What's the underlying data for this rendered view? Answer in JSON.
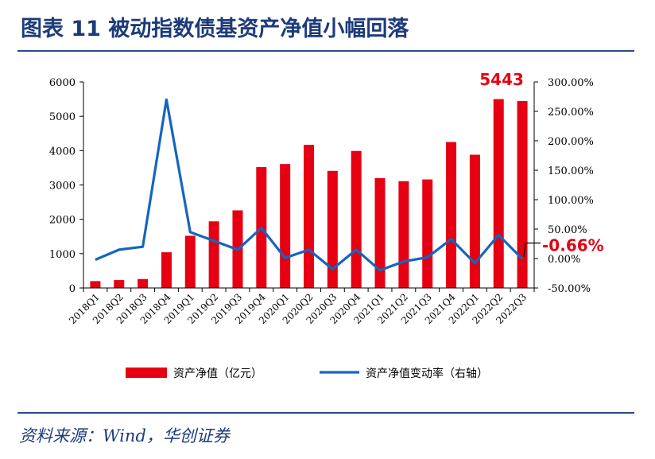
{
  "header": {
    "title": "图表 11  被动指数债基资产净值小幅回落",
    "source": "资料来源：Wind，华创证券"
  },
  "chart_data": {
    "type": "bar+line",
    "categories": [
      "2018Q1",
      "2018Q2",
      "2018Q3",
      "2018Q4",
      "2019Q1",
      "2019Q2",
      "2019Q3",
      "2019Q4",
      "2020Q1",
      "2020Q2",
      "2020Q3",
      "2020Q4",
      "2021Q1",
      "2021Q2",
      "2021Q3",
      "2021Q4",
      "2022Q1",
      "2022Q2",
      "2022Q3"
    ],
    "left_axis": {
      "min": 0,
      "max": 6000,
      "ticks": [
        0,
        1000,
        2000,
        3000,
        4000,
        5000,
        6000
      ],
      "tick_labels": [
        "0",
        "1000",
        "2000",
        "3000",
        "4000",
        "5000",
        "6000"
      ]
    },
    "right_axis": {
      "min": -50,
      "max": 300,
      "ticks": [
        -50,
        0,
        50,
        100,
        150,
        200,
        250,
        300
      ],
      "tick_labels": [
        "-50.00%",
        "0.00%",
        "50.00%",
        "100.00%",
        "150.00%",
        "200.00%",
        "250.00%",
        "300.00%"
      ]
    },
    "series": [
      {
        "name": "资产净值（亿元）",
        "type": "bar",
        "axis": "left",
        "color": "#e60012",
        "values": [
          200,
          230,
          260,
          1040,
          1520,
          1940,
          2260,
          3520,
          3610,
          4170,
          3410,
          3990,
          3200,
          3110,
          3160,
          4250,
          3880,
          5500,
          5443
        ]
      },
      {
        "name": "资产净值变动率（右轴）",
        "type": "line",
        "axis": "right",
        "color": "#1565c0",
        "values": [
          -2,
          15,
          20,
          270,
          45,
          30,
          15,
          52,
          1,
          15,
          -18,
          15,
          -20,
          -5,
          2,
          33,
          -8,
          40,
          -0.66
        ]
      }
    ],
    "annotations": [
      {
        "text": "5443",
        "series": "资产净值（亿元）",
        "category": "2022Q3"
      },
      {
        "text": "-0.66%",
        "series": "资产净值变动率（右轴）",
        "category": "2022Q3"
      }
    ],
    "legend_position": "bottom",
    "grid": false
  }
}
